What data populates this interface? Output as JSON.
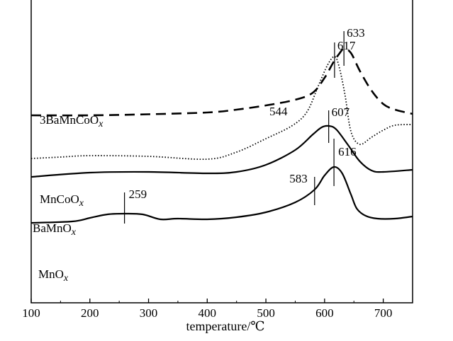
{
  "chart_data": {
    "type": "line",
    "title": "",
    "xlabel_main": "temperature/",
    "xlabel_unit": "℃",
    "ylabel": "",
    "xlim": [
      100,
      750
    ],
    "x_ticks": [
      "100",
      "200",
      "300",
      "400",
      "500",
      "600",
      "700"
    ],
    "series": [
      {
        "name": "3BaMnCoO",
        "subscript": "x",
        "style": "dashed",
        "points": [
          [
            100,
            163
          ],
          [
            200,
            163
          ],
          [
            300,
            161.5
          ],
          [
            400,
            159
          ],
          [
            450,
            155
          ],
          [
            500,
            149
          ],
          [
            550,
            141
          ],
          [
            580,
            131
          ],
          [
            600,
            110
          ],
          [
            615,
            88
          ],
          [
            625,
            76
          ],
          [
            633,
            69
          ],
          [
            645,
            75
          ],
          [
            660,
            100
          ],
          [
            680,
            128
          ],
          [
            700,
            147
          ],
          [
            720,
            155
          ],
          [
            750,
            161
          ]
        ],
        "peaks": [
          {
            "x": 633,
            "label": "633"
          }
        ]
      },
      {
        "name": "MnCoO",
        "subscript": "x",
        "style": "dotted",
        "points": [
          [
            100,
            224
          ],
          [
            150,
            222
          ],
          [
            200,
            220
          ],
          [
            300,
            221
          ],
          [
            400,
            225
          ],
          [
            450,
            215
          ],
          [
            500,
            196
          ],
          [
            544,
            178
          ],
          [
            570,
            158
          ],
          [
            590,
            120
          ],
          [
            605,
            92
          ],
          [
            617,
            80
          ],
          [
            625,
            95
          ],
          [
            635,
            135
          ],
          [
            645,
            186
          ],
          [
            660,
            204
          ],
          [
            680,
            194
          ],
          [
            700,
            184
          ],
          [
            720,
            177
          ],
          [
            750,
            176
          ]
        ],
        "peaks": [
          {
            "x": 617,
            "label": "617"
          },
          {
            "x": 544,
            "label": "544"
          }
        ]
      },
      {
        "name": "BaMnO",
        "subscript": "x",
        "style": "solid",
        "points": [
          [
            100,
            250
          ],
          [
            200,
            244
          ],
          [
            300,
            243
          ],
          [
            400,
            245
          ],
          [
            450,
            243
          ],
          [
            500,
            233
          ],
          [
            550,
            212
          ],
          [
            580,
            190
          ],
          [
            595,
            180
          ],
          [
            607,
            178
          ],
          [
            620,
            183
          ],
          [
            640,
            205
          ],
          [
            660,
            228
          ],
          [
            680,
            241
          ],
          [
            700,
            243
          ],
          [
            750,
            240
          ]
        ],
        "peaks": [
          {
            "x": 607,
            "label": "607"
          }
        ]
      },
      {
        "name": "MnO",
        "subscript": "x",
        "style": "solid",
        "points": [
          [
            100,
            315
          ],
          [
            170,
            313
          ],
          [
            200,
            308
          ],
          [
            230,
            303
          ],
          [
            259,
            302
          ],
          [
            290,
            303
          ],
          [
            320,
            310
          ],
          [
            350,
            309
          ],
          [
            400,
            310
          ],
          [
            450,
            307
          ],
          [
            500,
            300
          ],
          [
            550,
            286
          ],
          [
            583,
            268
          ],
          [
            600,
            248
          ],
          [
            616,
            236
          ],
          [
            630,
            245
          ],
          [
            645,
            275
          ],
          [
            655,
            295
          ],
          [
            670,
            305
          ],
          [
            690,
            309
          ],
          [
            720,
            309
          ],
          [
            750,
            306
          ]
        ],
        "peaks": [
          {
            "x": 259,
            "label": "259"
          },
          {
            "x": 583,
            "label": "583"
          },
          {
            "x": 616,
            "label": "616"
          }
        ]
      }
    ]
  }
}
